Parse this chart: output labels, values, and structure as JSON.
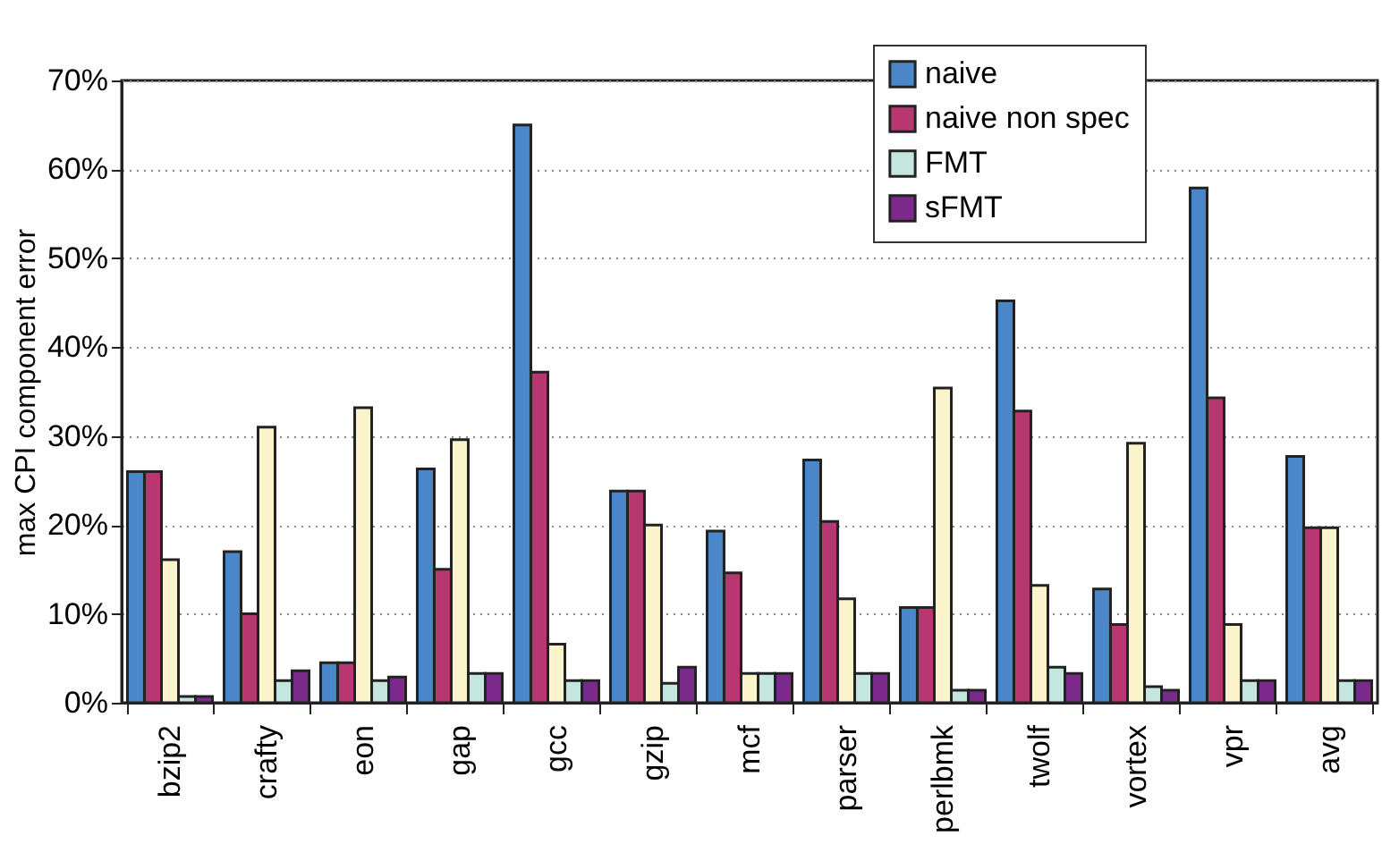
{
  "chart_data": {
    "type": "bar",
    "ylabel": "max CPI component error",
    "categories": [
      "bzip2",
      "crafty",
      "eon",
      "gap",
      "gcc",
      "gzip",
      "mcf",
      "parser",
      "perlbmk",
      "twolf",
      "vortex",
      "vpr",
      "avg"
    ],
    "series": [
      {
        "name": "naive",
        "color": "#4a86c8",
        "values": [
          26,
          17,
          4.5,
          26.3,
          65,
          23.8,
          19.3,
          27.3,
          10.7,
          45.2,
          12.8,
          57.9,
          27.7
        ]
      },
      {
        "name": "naive non spec",
        "color": "#b83770",
        "values": [
          26,
          10,
          4.5,
          15,
          37.2,
          23.8,
          14.6,
          20.4,
          10.7,
          32.8,
          8.8,
          34.3,
          19.7
        ]
      },
      {
        "color": "#fbf3cc",
        "values": [
          16.1,
          31,
          33.2,
          29.6,
          6.6,
          20,
          3.3,
          11.7,
          35.4,
          13.2,
          29.2,
          8.8,
          19.7
        ]
      },
      {
        "name": "FMT",
        "color": "#c5e6df",
        "values": [
          0.7,
          2.5,
          2.5,
          3.3,
          2.5,
          2.2,
          3.3,
          3.3,
          1.4,
          4,
          1.8,
          2.5,
          2.5
        ]
      },
      {
        "name": "sFMT",
        "color": "#7b2a8c",
        "values": [
          0.7,
          3.6,
          2.9,
          3.3,
          2.5,
          4,
          3.3,
          3.3,
          1.4,
          3.3,
          1.4,
          2.5,
          2.5
        ]
      }
    ],
    "ylim": [
      0,
      70
    ],
    "yticks": [
      {
        "value": 0,
        "label": "0%"
      },
      {
        "value": 10,
        "label": "10%"
      },
      {
        "value": 20,
        "label": "20%"
      },
      {
        "value": 30,
        "label": "30%"
      },
      {
        "value": 40,
        "label": "40%"
      },
      {
        "value": 50,
        "label": "50%"
      },
      {
        "value": 60,
        "label": "60%"
      },
      {
        "value": 70,
        "label": "70%"
      }
    ],
    "grid": "y",
    "legend": "top right"
  }
}
